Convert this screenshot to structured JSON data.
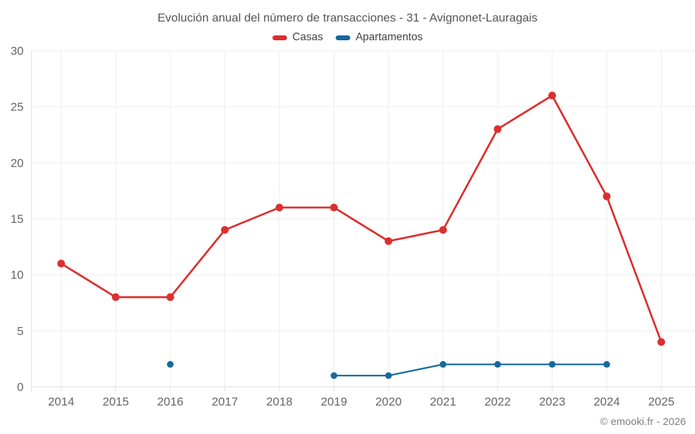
{
  "chart": {
    "title": "Evolución anual del número de transacciones - 31 - Avignonet-Lauragais",
    "footer": "© emooki.fr - 2026"
  },
  "chart_data": {
    "type": "line",
    "title": "Evolución anual del número de transacciones - 31 - Avignonet-Lauragais",
    "categories": [
      "2014",
      "2015",
      "2016",
      "2017",
      "2018",
      "2019",
      "2020",
      "2021",
      "2022",
      "2023",
      "2024",
      "2025"
    ],
    "series": [
      {
        "name": "Casas",
        "color": "#dc2f2f",
        "values": [
          11,
          8,
          8,
          14,
          16,
          16,
          13,
          14,
          23,
          26,
          17,
          4
        ]
      },
      {
        "name": "Apartamentos",
        "color": "#16699e",
        "values": [
          null,
          null,
          2,
          null,
          null,
          1,
          1,
          2,
          2,
          2,
          2,
          null
        ]
      }
    ],
    "xlabel": "",
    "ylabel": "",
    "ylim": [
      0,
      30
    ],
    "ytick_step": 5,
    "yticks": [
      "0",
      "5",
      "10",
      "15",
      "20",
      "25",
      "30"
    ],
    "grid": true,
    "legend_position": "top",
    "grid_color": "#ededed",
    "axis_color": "#dedede",
    "tick_label_color": "#666666"
  }
}
